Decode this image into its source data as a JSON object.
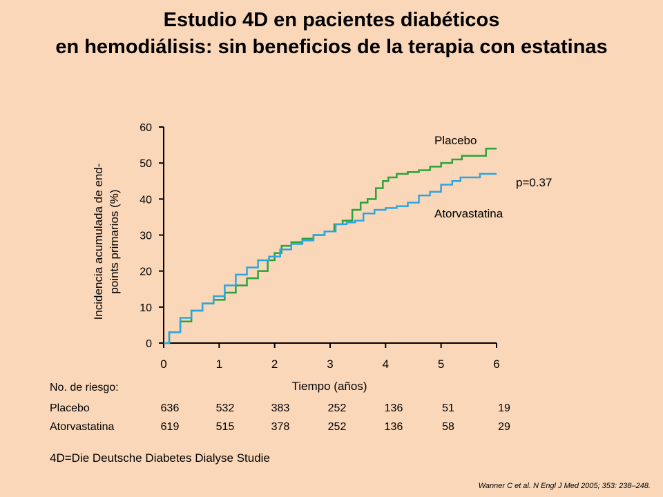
{
  "header": {
    "title_line1": "Estudio 4D en pacientes diabéticos",
    "title_line2": "en hemodiálisis: sin beneficios de la terapia con estatinas"
  },
  "chart_data": {
    "type": "line",
    "xlabel": "Tiempo (años)",
    "ylabel_line1": "Incidencia acumulada de end-",
    "ylabel_line2": "points primarios (%)",
    "xlim": [
      0,
      6
    ],
    "ylim": [
      0,
      60
    ],
    "x_ticks": [
      "0",
      "1",
      "2",
      "3",
      "4",
      "5",
      "6"
    ],
    "y_ticks": [
      "0",
      "10",
      "20",
      "30",
      "40",
      "50",
      "60"
    ],
    "grid": false,
    "annotation": "p=0.37",
    "colors": {
      "placebo": "#2BA23B",
      "atorvastatina": "#2CA6E0"
    },
    "series": [
      {
        "name": "Placebo",
        "color": "#2BA23B",
        "x": [
          0,
          0.2,
          0.4,
          0.6,
          0.8,
          1.0,
          1.2,
          1.4,
          1.6,
          1.8,
          1.95,
          2.05,
          2.2,
          2.4,
          2.6,
          2.8,
          3.0,
          3.15,
          3.3,
          3.5,
          3.6,
          3.75,
          3.9,
          4.0,
          4.1,
          4.3,
          4.5,
          4.7,
          4.9,
          5.1,
          5.3,
          5.45,
          5.6,
          5.8,
          5.82,
          6.0
        ],
        "y": [
          0,
          3,
          6,
          9,
          11,
          12,
          14,
          16,
          18,
          20,
          23,
          25,
          27,
          28,
          29,
          30,
          31,
          33,
          34,
          37,
          39,
          40,
          43,
          45,
          46,
          47,
          47.5,
          48,
          49,
          50,
          51,
          52,
          52,
          52,
          54,
          54
        ]
      },
      {
        "name": "Atorvastatina",
        "color": "#2CA6E0",
        "x": [
          0,
          0.2,
          0.4,
          0.6,
          0.8,
          1.0,
          1.2,
          1.4,
          1.6,
          1.8,
          2.0,
          2.2,
          2.4,
          2.6,
          2.8,
          3.0,
          3.2,
          3.4,
          3.5,
          3.7,
          3.9,
          4.1,
          4.3,
          4.5,
          4.7,
          4.9,
          5.1,
          5.3,
          5.4,
          5.6,
          5.8,
          6.0
        ],
        "y": [
          0,
          3,
          7,
          9,
          11,
          13,
          16,
          19,
          21,
          23,
          24,
          26,
          27.5,
          28.5,
          30,
          31,
          33,
          33.5,
          34,
          36,
          37,
          37.5,
          38,
          39,
          41,
          42,
          44,
          45,
          46,
          46,
          47,
          47
        ]
      }
    ]
  },
  "risk_table": {
    "title": "No. de riesgo:",
    "rows": [
      {
        "label": "Placebo",
        "values": [
          "636",
          "532",
          "383",
          "252",
          "136",
          "51",
          "19"
        ]
      },
      {
        "label": "Atorvastatina",
        "values": [
          "619",
          "515",
          "378",
          "252",
          "136",
          "58",
          "29"
        ]
      }
    ]
  },
  "footnote": "4D=Die Deutsche Diabetes Dialyse Studie",
  "citation": "Wanner C et al. N Engl J Med 2005; 353: 238–248."
}
